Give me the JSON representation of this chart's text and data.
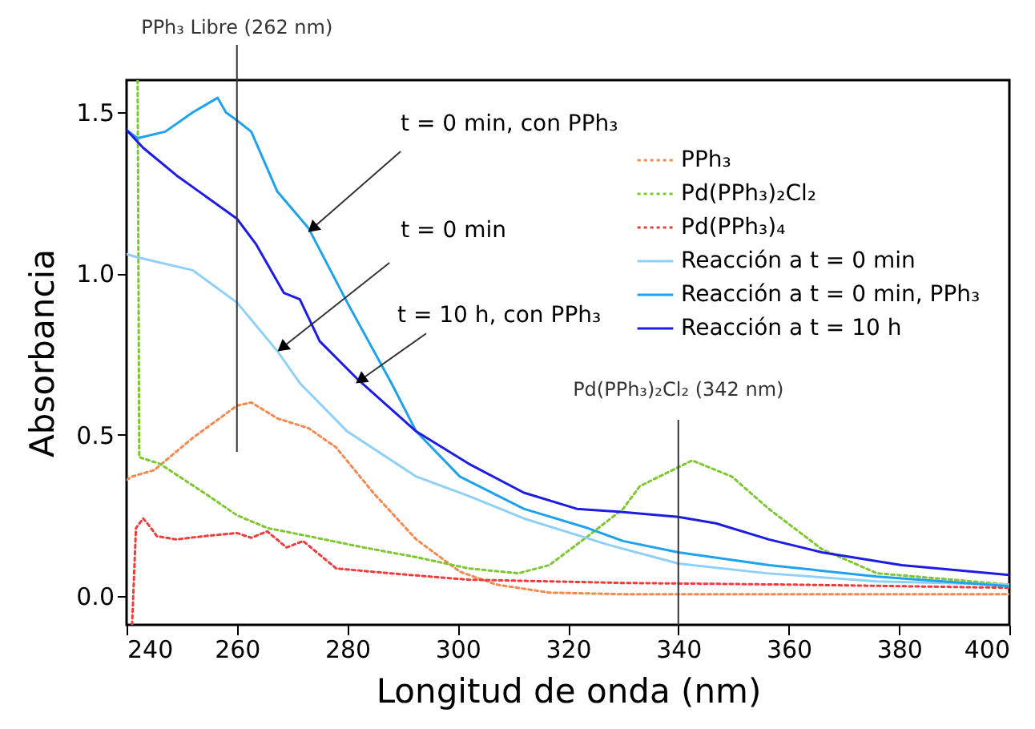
{
  "chart_data": {
    "type": "line",
    "xlabel": "Longitud de onda (nm)",
    "ylabel": "Absorbancia",
    "xlim": [
      240,
      400
    ],
    "xticks": [
      240,
      260,
      280,
      300,
      320,
      340,
      360,
      380,
      400
    ],
    "ylim": [
      -0.09,
      1.6
    ],
    "yticks": [
      {
        "value": 0,
        "label": "0.0"
      },
      {
        "value": 0.5,
        "label": "0.5"
      },
      {
        "value": 1,
        "label": "1.0"
      },
      {
        "value": 1.5,
        "label": "1.5"
      }
    ],
    "grid": false,
    "legend": "top right",
    "series": [
      {
        "name": "PPh₃",
        "color": "#f4894f",
        "line_style": "dotted",
        "x": [
          240,
          241,
          245,
          252,
          260,
          262.6,
          267.4,
          273,
          278,
          284.7,
          292.5,
          300.4,
          307,
          316.6,
          330,
          360,
          400
        ],
        "values": [
          0.36,
          0.37,
          0.39,
          0.49,
          0.59,
          0.6,
          0.55,
          0.52,
          0.46,
          0.32,
          0.175,
          0.075,
          0.035,
          0.01,
          0.005,
          0.005,
          0.005
        ]
      },
      {
        "name": "Pd(PPh₃)₂Cl₂",
        "color": "#7cc82e",
        "line_style": "dotted",
        "x": [
          242,
          242.3,
          246,
          254,
          260,
          265.6,
          273,
          283,
          292.5,
          302,
          311,
          316.6,
          323.6,
          330,
          333,
          342.5,
          349.7,
          356.4,
          366,
          376,
          400
        ],
        "values": [
          1.6,
          0.43,
          0.41,
          0.32,
          0.25,
          0.21,
          0.185,
          0.15,
          0.12,
          0.085,
          0.07,
          0.095,
          0.185,
          0.27,
          0.34,
          0.42,
          0.37,
          0.27,
          0.145,
          0.07,
          0.035
        ]
      },
      {
        "name": "Pd(PPh₃)₄",
        "color": "#f03c3c",
        "line_style": "dotted",
        "x": [
          241,
          241.7,
          243,
          244,
          245.5,
          249,
          254,
          260,
          262.6,
          265.5,
          269,
          272,
          278,
          287.7,
          302,
          316.6,
          330,
          360,
          400
        ],
        "values": [
          -0.09,
          0.21,
          0.24,
          0.22,
          0.185,
          0.175,
          0.185,
          0.195,
          0.18,
          0.2,
          0.15,
          0.17,
          0.085,
          0.07,
          0.05,
          0.045,
          0.04,
          0.035,
          0.025
        ]
      },
      {
        "name": "Reacción a t = 0 min",
        "color": "#8fd0f8",
        "line_style": "solid",
        "x": [
          240,
          242,
          252,
          260,
          267.3,
          271.4,
          280,
          292.5,
          302,
          312,
          327,
          340,
          356,
          376,
          400
        ],
        "values": [
          1.06,
          1.05,
          1.01,
          0.91,
          0.76,
          0.66,
          0.51,
          0.37,
          0.31,
          0.24,
          0.16,
          0.1,
          0.07,
          0.045,
          0.035
        ]
      },
      {
        "name": "Reacción a t = 0 min, PPh₃",
        "color": "#1ea2ee",
        "line_style": "solid",
        "x": [
          240,
          242,
          247,
          252,
          255,
          256.5,
          258,
          260,
          262.6,
          267.3,
          273,
          280,
          288,
          292.5,
          300.4,
          312,
          323.6,
          330,
          340,
          356.5,
          376,
          400
        ],
        "values": [
          1.445,
          1.42,
          1.44,
          1.5,
          1.53,
          1.545,
          1.5,
          1.475,
          1.44,
          1.255,
          1.14,
          0.91,
          0.66,
          0.51,
          0.37,
          0.27,
          0.21,
          0.17,
          0.135,
          0.095,
          0.06,
          0.03
        ]
      },
      {
        "name": "Reacción a t = 10 h",
        "color": "#1c1ce6",
        "line_style": "solid",
        "x": [
          240,
          243,
          249,
          260,
          263.5,
          268.5,
          271.4,
          275,
          282,
          292.5,
          302,
          312,
          321.6,
          330,
          340,
          346.8,
          356.4,
          366,
          380.5,
          400
        ],
        "values": [
          1.445,
          1.39,
          1.305,
          1.17,
          1.09,
          0.94,
          0.92,
          0.79,
          0.67,
          0.51,
          0.41,
          0.32,
          0.27,
          0.26,
          0.245,
          0.225,
          0.175,
          0.135,
          0.095,
          0.065
        ]
      }
    ],
    "ref_lines": [
      {
        "axis": "x",
        "value": 260,
        "label": "PPh₃ Libre (262 nm)",
        "color": "#333333"
      },
      {
        "axis": "x",
        "value": 340,
        "label": "Pd(PPh₃)₂Cl₂ (342 nm)",
        "color": "#333333"
      }
    ],
    "annotations": [
      {
        "text": "t = 0 min, con PPh₃",
        "x": 273.7,
        "y": 1.14
      },
      {
        "text": "t = 0 min",
        "x": 268.2,
        "y": 0.77
      },
      {
        "text": "t = 10 h, con PPh₃",
        "x": 282.4,
        "y": 0.67
      }
    ]
  }
}
